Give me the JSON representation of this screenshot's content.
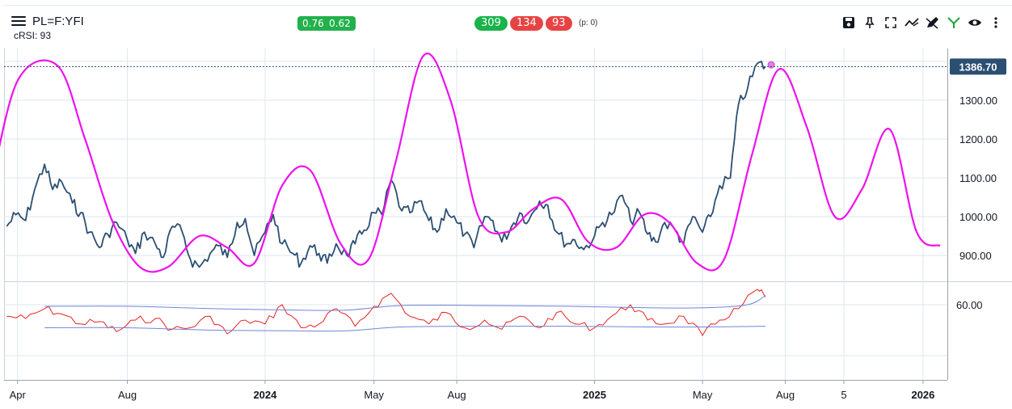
{
  "header": {
    "symbol": "PL=F:YFI",
    "indicator": "cRSI: 93",
    "badges_a": [
      "0.76",
      "0.62"
    ],
    "badges_b": [
      "309",
      "134",
      "93"
    ],
    "p_value": "(p: 0)"
  },
  "toolbar_icons": [
    "save-icon",
    "pin-icon",
    "fullscreen-icon",
    "trend-icon",
    "draw-icon",
    "fork-icon",
    "eye-icon",
    "more-icon"
  ],
  "colors": {
    "price": "#2b4f72",
    "cycle": "#ee11ee",
    "rsi": "#e82121",
    "bands": "#6f86d6",
    "price_tag_bg": "#2b4f72",
    "grid": "#dfe6ee"
  },
  "chart_data": [
    {
      "type": "line",
      "title": "",
      "ylim": [
        820,
        1440
      ],
      "last_price": "1386.70",
      "y_ticks": [
        "900.00",
        "1000.00",
        "1100.00",
        "1200.00",
        "1300.00"
      ],
      "series": [
        {
          "name": "",
          "role": "price",
          "x": [
            "2023-03-20",
            "2023-03-30",
            "2023-04-10",
            "2023-04-20",
            "2023-05-01",
            "2023-05-10",
            "2023-05-20",
            "2023-06-01",
            "2023-06-10",
            "2023-06-20",
            "2023-07-01",
            "2023-07-10",
            "2023-07-20",
            "2023-08-01",
            "2023-08-10",
            "2023-08-20",
            "2023-09-01",
            "2023-09-10",
            "2023-09-20",
            "2023-10-01",
            "2023-10-10",
            "2023-10-20",
            "2023-11-01",
            "2023-11-10",
            "2023-11-20",
            "2023-12-01",
            "2023-12-10",
            "2023-12-20",
            "2024-01-01",
            "2024-01-10",
            "2024-01-20",
            "2024-02-01",
            "2024-02-10",
            "2024-02-20",
            "2024-03-01",
            "2024-03-10",
            "2024-03-20",
            "2024-04-01",
            "2024-04-10",
            "2024-04-20",
            "2024-05-01",
            "2024-05-10",
            "2024-05-20",
            "2024-06-01",
            "2024-06-10",
            "2024-06-20",
            "2024-07-01",
            "2024-07-10",
            "2024-07-20",
            "2024-08-01",
            "2024-08-10",
            "2024-08-20",
            "2024-09-01",
            "2024-09-10",
            "2024-09-20",
            "2024-10-01",
            "2024-10-10",
            "2024-10-20",
            "2024-11-01",
            "2024-11-10",
            "2024-11-20",
            "2024-12-01",
            "2024-12-10",
            "2024-12-20",
            "2025-01-01",
            "2025-01-10",
            "2025-01-20",
            "2025-02-01",
            "2025-02-10",
            "2025-02-20",
            "2025-03-01",
            "2025-03-10",
            "2025-03-20",
            "2025-04-01",
            "2025-04-10",
            "2025-04-20",
            "2025-05-01",
            "2025-05-10",
            "2025-05-20",
            "2025-06-01",
            "2025-06-10",
            "2025-06-20",
            "2025-07-01",
            "2025-07-10"
          ],
          "values": [
            975,
            1005,
            990,
            1070,
            1135,
            1070,
            1090,
            1035,
            1010,
            960,
            920,
            955,
            985,
            940,
            905,
            960,
            930,
            895,
            975,
            960,
            890,
            870,
            905,
            925,
            895,
            985,
            995,
            900,
            960,
            1005,
            930,
            905,
            880,
            925,
            905,
            880,
            930,
            900,
            930,
            965,
            1010,
            1005,
            1095,
            1015,
            1010,
            1040,
            990,
            960,
            1020,
            985,
            955,
            920,
            1000,
            990,
            935,
            975,
            1010,
            990,
            1040,
            1030,
            960,
            930,
            940,
            915,
            950,
            985,
            1005,
            1055,
            990,
            1010,
            955,
            935,
            985,
            965,
            930,
            1000,
            960,
            1000,
            1080,
            1100,
            1290,
            1330,
            1395,
            1387
          ]
        },
        {
          "name": "",
          "role": "cycle",
          "x": [
            "2023-03-01",
            "2023-04-01",
            "2023-05-15",
            "2023-06-15",
            "2023-07-15",
            "2023-08-15",
            "2023-09-15",
            "2023-10-20",
            "2023-11-20",
            "2023-12-20",
            "2024-01-20",
            "2024-02-20",
            "2024-03-25",
            "2024-04-25",
            "2024-05-25",
            "2024-06-25",
            "2024-07-25",
            "2024-08-25",
            "2024-09-25",
            "2024-10-25",
            "2024-11-25",
            "2024-12-25",
            "2025-01-25",
            "2025-02-25",
            "2025-03-25",
            "2025-04-25",
            "2025-05-25",
            "2025-06-25",
            "2025-07-25",
            "2025-08-25",
            "2025-09-25",
            "2025-10-25",
            "2025-11-25",
            "2025-12-25",
            "2026-01-20"
          ],
          "values": [
            1060,
            1350,
            1390,
            1200,
            990,
            870,
            870,
            950,
            920,
            880,
            1080,
            1120,
            930,
            890,
            1140,
            1415,
            1300,
            1000,
            960,
            1020,
            1045,
            935,
            920,
            1005,
            985,
            880,
            890,
            1160,
            1380,
            1230,
            1000,
            1070,
            1225,
            960,
            925
          ]
        }
      ]
    },
    {
      "type": "line",
      "title": "",
      "ylim": [
        0,
        100
      ],
      "y_ticks": [
        "60.00"
      ],
      "series": [
        {
          "name": "",
          "role": "crsi",
          "x": [
            "2023-03-20",
            "2023-04-10",
            "2023-05-01",
            "2023-05-20",
            "2023-06-10",
            "2023-07-01",
            "2023-07-20",
            "2023-08-10",
            "2023-09-01",
            "2023-09-20",
            "2023-10-10",
            "2023-11-01",
            "2023-11-20",
            "2023-12-10",
            "2024-01-01",
            "2024-01-20",
            "2024-02-10",
            "2024-03-01",
            "2024-03-20",
            "2024-04-10",
            "2024-05-01",
            "2024-05-20",
            "2024-06-10",
            "2024-07-01",
            "2024-07-20",
            "2024-08-10",
            "2024-09-01",
            "2024-09-20",
            "2024-10-10",
            "2024-11-01",
            "2024-11-20",
            "2024-12-10",
            "2025-01-01",
            "2025-01-20",
            "2025-02-10",
            "2025-03-01",
            "2025-03-20",
            "2025-04-10",
            "2025-05-01",
            "2025-05-20",
            "2025-06-10",
            "2025-07-01",
            "2025-07-10"
          ],
          "values": [
            45,
            42,
            55,
            48,
            35,
            38,
            25,
            40,
            42,
            28,
            30,
            45,
            22,
            40,
            35,
            60,
            30,
            35,
            55,
            32,
            58,
            75,
            45,
            35,
            50,
            30,
            40,
            28,
            45,
            30,
            50,
            35,
            30,
            45,
            60,
            40,
            35,
            45,
            20,
            40,
            55,
            80,
            70
          ]
        },
        {
          "name": "",
          "role": "upper-band",
          "x": [
            "2023-05-01",
            "2023-08-01",
            "2023-11-01",
            "2024-02-01",
            "2024-04-01",
            "2024-06-01",
            "2024-09-01",
            "2024-12-01",
            "2025-03-01",
            "2025-05-01",
            "2025-06-20",
            "2025-07-10"
          ],
          "values": [
            58,
            58,
            55,
            53,
            53,
            59,
            59,
            58,
            56,
            56,
            60,
            72
          ]
        },
        {
          "name": "",
          "role": "lower-band",
          "x": [
            "2023-05-01",
            "2023-08-01",
            "2023-11-01",
            "2024-02-01",
            "2024-04-01",
            "2024-06-01",
            "2024-09-01",
            "2024-12-01",
            "2025-03-01",
            "2025-05-01",
            "2025-07-10"
          ],
          "values": [
            30,
            30,
            27,
            26,
            26,
            31,
            32,
            32,
            31,
            31,
            32
          ]
        }
      ]
    }
  ],
  "x_axis_labels": [
    {
      "label": "Apr",
      "date": "2023-04-01",
      "bold": false
    },
    {
      "label": "Aug",
      "date": "2023-08-01",
      "bold": false
    },
    {
      "label": "2024",
      "date": "2024-01-01",
      "bold": true
    },
    {
      "label": "May",
      "date": "2024-05-01",
      "bold": false
    },
    {
      "label": "Aug",
      "date": "2024-08-01",
      "bold": false
    },
    {
      "label": "2025",
      "date": "2025-01-01",
      "bold": true
    },
    {
      "label": "May",
      "date": "2025-05-01",
      "bold": false
    },
    {
      "label": "Aug",
      "date": "2025-08-01",
      "bold": false
    },
    {
      "label": "5",
      "date": "2025-10-05",
      "bold": false
    },
    {
      "label": "2026",
      "date": "2026-01-01",
      "bold": true
    }
  ]
}
